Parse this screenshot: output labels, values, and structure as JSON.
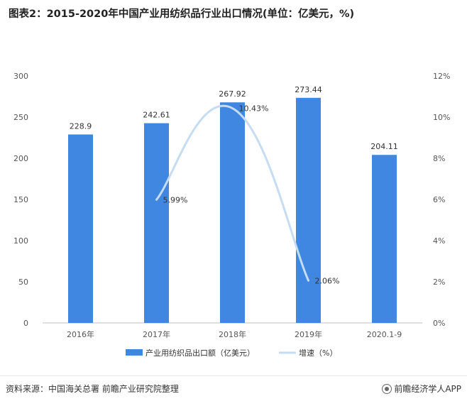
{
  "header": {
    "title": "图表2：2015-2020年中国产业用纺织品行业出口情况(单位：亿美元，%)"
  },
  "footer": {
    "source": "资料来源：中国海关总署 前瞻产业研究院整理",
    "brand": "前瞻经济学人APP"
  },
  "chart_data": {
    "type": "bar",
    "title": "图表2：2015-2020年中国产业用纺织品行业出口情况(单位：亿美元，%)",
    "categories": [
      "2016年",
      "2017年",
      "2018年",
      "2019年",
      "2020.1-9"
    ],
    "series": [
      {
        "name": "产业用纺织品出口额（亿美元）",
        "type": "bar",
        "axis": "left",
        "color": "#3f87e0",
        "values": [
          228.9,
          242.61,
          267.92,
          273.44,
          204.11
        ],
        "labels": [
          "228.9",
          "242.61",
          "267.92",
          "273.44",
          "204.11"
        ]
      },
      {
        "name": "增速（%）",
        "type": "line",
        "axis": "right",
        "color": "#c5dcf3",
        "values": [
          null,
          5.99,
          10.43,
          2.06,
          null
        ],
        "labels": [
          "",
          "5.99%",
          "10.43%",
          "2.06%",
          ""
        ]
      }
    ],
    "y_left": {
      "range": [
        0,
        300
      ],
      "ticks": [
        "0",
        "50",
        "100",
        "150",
        "200",
        "250",
        "300"
      ]
    },
    "y_right": {
      "range": [
        0,
        12
      ],
      "ticks": [
        "0%",
        "2%",
        "4%",
        "6%",
        "8%",
        "10%",
        "12%"
      ]
    },
    "legend": "bottom",
    "grid": false
  }
}
